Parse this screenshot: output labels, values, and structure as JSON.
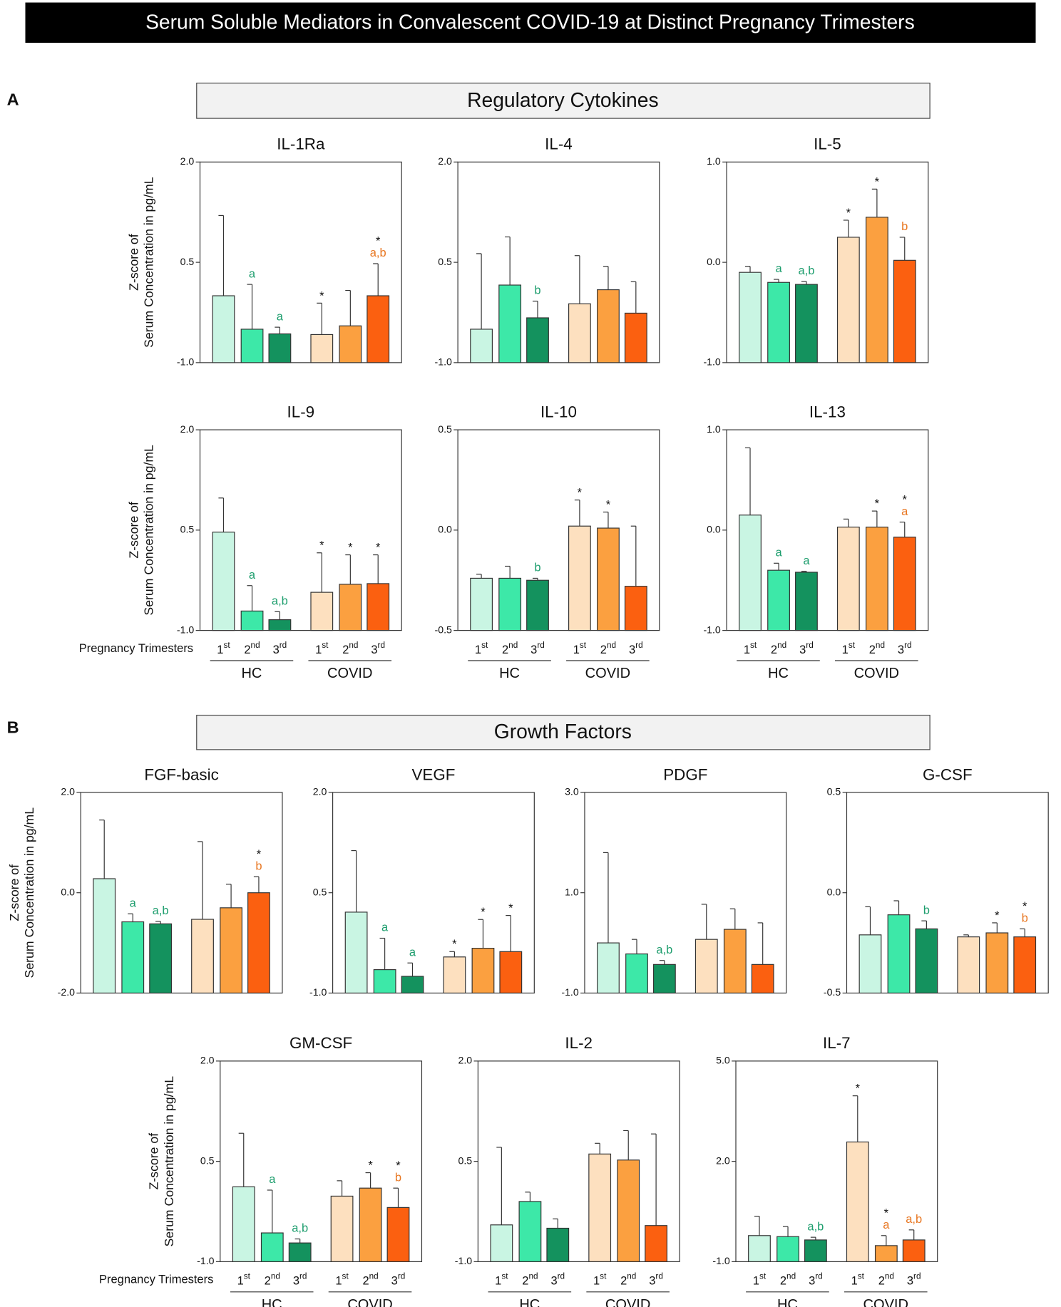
{
  "title": "Serum Soluble Mediators in Convalescent COVID-19 at Distinct Pregnancy Trimesters",
  "panels": [
    {
      "label": "A",
      "header": "Regulatory Cytokines"
    },
    {
      "label": "B",
      "header": "Growth Factors"
    }
  ],
  "y_axis_label": [
    "Z-score of",
    "Serum Concentration in pg/mL"
  ],
  "x_axis_label": "Pregnancy Trimesters",
  "categories": [
    "1st",
    "2nd",
    "3rd",
    "1st",
    "2nd",
    "3rd"
  ],
  "groups": [
    "HC",
    "COVID"
  ],
  "colors": [
    "#c9f5e3",
    "#3de8a8",
    "#14925e",
    "#fde0bf",
    "#fba040",
    "#fb6010"
  ],
  "letter_colors": [
    "#1e9e6e",
    "#e87722"
  ],
  "chart_data": [
    {
      "type": "bar",
      "title": "IL-1Ra",
      "ylim": [
        -1,
        2
      ],
      "yticks": [
        {
          "value": -1,
          "label": "-1.0"
        },
        {
          "value": 0.5,
          "label": "0.5"
        },
        {
          "value": 2,
          "label": "2.0"
        }
      ],
      "values": [
        0.0,
        -0.5,
        -0.57,
        -0.58,
        -0.45,
        0.0
      ],
      "errors": [
        1.2,
        0.67,
        0.1,
        0.47,
        0.53,
        0.48
      ],
      "stars": [
        null,
        null,
        null,
        "*",
        null,
        "*"
      ],
      "letters": [
        null,
        "a",
        "a",
        null,
        null,
        "a,b"
      ]
    },
    {
      "type": "bar",
      "title": "IL-4",
      "ylim": [
        -1,
        2
      ],
      "yticks": [
        {
          "value": -1,
          "label": "-1.0"
        },
        {
          "value": 0.5,
          "label": "0.5"
        },
        {
          "value": 2,
          "label": "2.0"
        }
      ],
      "values": [
        -0.5,
        0.16,
        -0.33,
        -0.12,
        0.09,
        -0.26
      ],
      "errors": [
        1.13,
        0.72,
        0.25,
        0.72,
        0.35,
        0.47
      ],
      "stars": [
        null,
        null,
        null,
        null,
        null,
        null
      ],
      "letters": [
        null,
        null,
        "b",
        null,
        null,
        null
      ]
    },
    {
      "type": "bar",
      "title": "IL-5",
      "ylim": [
        -1,
        1
      ],
      "yticks": [
        {
          "value": -1,
          "label": "-1.0"
        },
        {
          "value": 0,
          "label": "0.0"
        },
        {
          "value": 1,
          "label": "1.0"
        }
      ],
      "values": [
        -0.1,
        -0.2,
        -0.22,
        0.25,
        0.45,
        0.02
      ],
      "errors": [
        0.06,
        0.03,
        0.03,
        0.17,
        0.28,
        0.23
      ],
      "stars": [
        null,
        null,
        null,
        "*",
        "*",
        null
      ],
      "letters": [
        null,
        "a",
        "a,b",
        null,
        null,
        "b"
      ]
    },
    {
      "type": "bar",
      "title": "IL-9",
      "ylim": [
        -1,
        2
      ],
      "yticks": [
        {
          "value": -1,
          "label": "-1.0"
        },
        {
          "value": 0.5,
          "label": "0.5"
        },
        {
          "value": 2,
          "label": "2.0"
        }
      ],
      "values": [
        0.47,
        -0.71,
        -0.84,
        -0.43,
        -0.31,
        -0.3
      ],
      "errors": [
        0.51,
        0.38,
        0.12,
        0.59,
        0.44,
        0.43
      ],
      "stars": [
        null,
        null,
        null,
        "*",
        "*",
        "*"
      ],
      "letters": [
        null,
        "a",
        "a,b",
        null,
        null,
        null
      ]
    },
    {
      "type": "bar",
      "title": "IL-10",
      "ylim": [
        -0.5,
        0.5
      ],
      "yticks": [
        {
          "value": -0.5,
          "label": "-0.5"
        },
        {
          "value": 0,
          "label": "0.0"
        },
        {
          "value": 0.5,
          "label": "0.5"
        }
      ],
      "values": [
        -0.24,
        -0.24,
        -0.25,
        0.02,
        0.01,
        -0.28
      ],
      "errors": [
        0.02,
        0.06,
        0.01,
        0.13,
        0.08,
        0.3
      ],
      "stars": [
        null,
        null,
        null,
        "*",
        "*",
        null
      ],
      "letters": [
        null,
        null,
        "b",
        null,
        null,
        null
      ]
    },
    {
      "type": "bar",
      "title": "IL-13",
      "ylim": [
        -1,
        1
      ],
      "yticks": [
        {
          "value": -1,
          "label": "-1.0"
        },
        {
          "value": 0,
          "label": "0.0"
        },
        {
          "value": 1,
          "label": "1.0"
        }
      ],
      "values": [
        0.15,
        -0.4,
        -0.42,
        0.03,
        0.03,
        -0.07
      ],
      "errors": [
        0.67,
        0.07,
        0.01,
        0.08,
        0.16,
        0.15
      ],
      "stars": [
        null,
        null,
        null,
        null,
        "*",
        "*"
      ],
      "letters": [
        null,
        "a",
        "a",
        null,
        null,
        "a"
      ]
    },
    {
      "type": "bar",
      "title": "FGF-basic",
      "ylim": [
        -2,
        2
      ],
      "yticks": [
        {
          "value": -2,
          "label": "-2.0"
        },
        {
          "value": 0,
          "label": "0.0"
        },
        {
          "value": 2,
          "label": "2.0"
        }
      ],
      "values": [
        0.28,
        -0.58,
        -0.62,
        -0.53,
        -0.3,
        0.0
      ],
      "errors": [
        1.17,
        0.16,
        0.05,
        1.55,
        0.47,
        0.32
      ],
      "stars": [
        null,
        null,
        null,
        null,
        null,
        "*"
      ],
      "letters": [
        null,
        "a",
        "a,b",
        null,
        null,
        "b"
      ]
    },
    {
      "type": "bar",
      "title": "VEGF",
      "ylim": [
        -1,
        2
      ],
      "yticks": [
        {
          "value": -1,
          "label": "-1.0"
        },
        {
          "value": 0.5,
          "label": "0.5"
        },
        {
          "value": 2,
          "label": "2.0"
        }
      ],
      "values": [
        0.21,
        -0.65,
        -0.75,
        -0.46,
        -0.33,
        -0.38
      ],
      "errors": [
        0.92,
        0.47,
        0.2,
        0.08,
        0.43,
        0.54
      ],
      "stars": [
        null,
        null,
        null,
        "*",
        "*",
        "*"
      ],
      "letters": [
        null,
        "a",
        "a",
        null,
        null,
        null
      ]
    },
    {
      "type": "bar",
      "title": "PDGF",
      "ylim": [
        -1,
        3
      ],
      "yticks": [
        {
          "value": -1,
          "label": "-1.0"
        },
        {
          "value": 1,
          "label": "1.0"
        },
        {
          "value": 3,
          "label": "3.0"
        }
      ],
      "values": [
        0.0,
        -0.22,
        -0.43,
        0.07,
        0.27,
        -0.43
      ],
      "errors": [
        1.8,
        0.29,
        0.08,
        0.7,
        0.41,
        0.83
      ],
      "stars": [
        null,
        null,
        null,
        null,
        null,
        null
      ],
      "letters": [
        null,
        null,
        "a,b",
        null,
        null,
        null
      ]
    },
    {
      "type": "bar",
      "title": "G-CSF",
      "ylim": [
        -0.5,
        0.5
      ],
      "yticks": [
        {
          "value": -0.5,
          "label": "-0.5"
        },
        {
          "value": 0,
          "label": "0.0"
        },
        {
          "value": 0.5,
          "label": "0.5"
        }
      ],
      "values": [
        -0.21,
        -0.11,
        -0.18,
        -0.22,
        -0.2,
        -0.22
      ],
      "errors": [
        0.14,
        0.07,
        0.04,
        0.01,
        0.05,
        0.04
      ],
      "stars": [
        null,
        null,
        null,
        null,
        "*",
        "*"
      ],
      "letters": [
        null,
        null,
        "b",
        null,
        null,
        "b"
      ]
    },
    {
      "type": "bar",
      "title": "GM-CSF",
      "ylim": [
        -1,
        2
      ],
      "yticks": [
        {
          "value": -1,
          "label": "-1.0"
        },
        {
          "value": 0.5,
          "label": "0.5"
        },
        {
          "value": 2,
          "label": "2.0"
        }
      ],
      "values": [
        0.12,
        -0.57,
        -0.72,
        -0.02,
        0.1,
        -0.19
      ],
      "errors": [
        0.8,
        0.64,
        0.06,
        0.23,
        0.23,
        0.29
      ],
      "stars": [
        null,
        null,
        null,
        null,
        "*",
        "*"
      ],
      "letters": [
        null,
        "a",
        "a,b",
        null,
        null,
        "b"
      ]
    },
    {
      "type": "bar",
      "title": "IL-2",
      "ylim": [
        -1,
        2
      ],
      "yticks": [
        {
          "value": -1,
          "label": "-1.0"
        },
        {
          "value": 0.5,
          "label": "0.5"
        },
        {
          "value": 2,
          "label": "2.0"
        }
      ],
      "values": [
        -0.45,
        -0.1,
        -0.5,
        0.61,
        0.52,
        -0.46
      ],
      "errors": [
        1.16,
        0.14,
        0.14,
        0.16,
        0.44,
        1.37
      ],
      "stars": [
        null,
        null,
        null,
        null,
        null,
        null
      ],
      "letters": [
        null,
        null,
        null,
        null,
        null,
        null
      ]
    },
    {
      "type": "bar",
      "title": "IL-7",
      "ylim": [
        -1,
        5
      ],
      "yticks": [
        {
          "value": -1,
          "label": "-1.0"
        },
        {
          "value": 2,
          "label": "2.0"
        },
        {
          "value": 5,
          "label": "5.0"
        }
      ],
      "values": [
        -0.22,
        -0.25,
        -0.35,
        2.58,
        -0.52,
        -0.35
      ],
      "errors": [
        0.58,
        0.3,
        0.08,
        1.38,
        0.3,
        0.3
      ],
      "stars": [
        null,
        null,
        null,
        "*",
        "*",
        null
      ],
      "letters": [
        null,
        null,
        "a,b",
        null,
        "a",
        "a,b"
      ]
    }
  ]
}
